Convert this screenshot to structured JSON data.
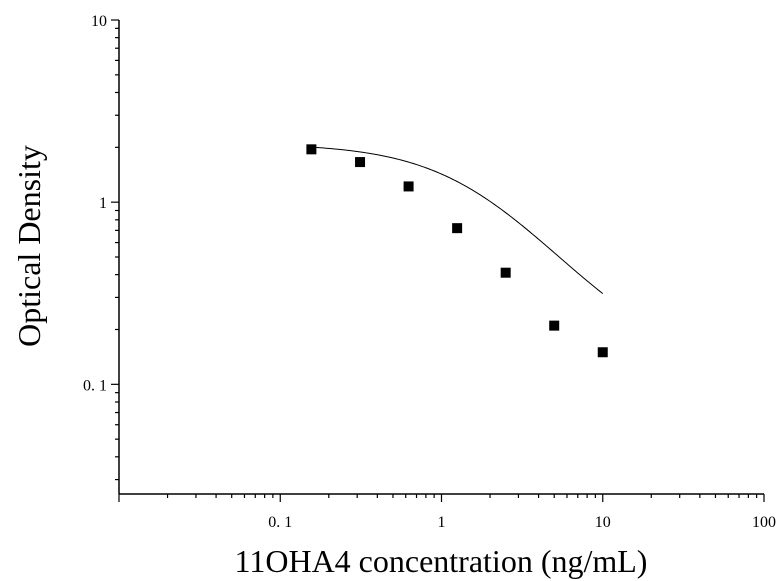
{
  "chart_data": {
    "type": "scatter",
    "title": "",
    "xlabel": "11OHA4 concentration (ng/mL)",
    "ylabel": "Optical Density",
    "xscale": "log",
    "yscale": "log",
    "xlim": [
      0.01,
      100
    ],
    "ylim": [
      0.025,
      10
    ],
    "x_tick_labels": [
      {
        "value": 0.1,
        "label": "0. 1"
      },
      {
        "value": 1,
        "label": "1"
      },
      {
        "value": 10,
        "label": "10"
      },
      {
        "value": 100,
        "label": "100"
      }
    ],
    "y_tick_labels": [
      {
        "value": 0.1,
        "label": "0. 1"
      },
      {
        "value": 1,
        "label": "1"
      },
      {
        "value": 10,
        "label": "10"
      }
    ],
    "grid": false,
    "series": [
      {
        "marker": "square",
        "color": "#000000",
        "points": [
          {
            "x": 0.156,
            "y": 1.95
          },
          {
            "x": 0.3125,
            "y": 1.66
          },
          {
            "x": 0.625,
            "y": 1.22
          },
          {
            "x": 1.25,
            "y": 0.72
          },
          {
            "x": 2.5,
            "y": 0.41
          },
          {
            "x": 5,
            "y": 0.21
          },
          {
            "x": 10,
            "y": 0.15
          }
        ]
      }
    ],
    "fit": {
      "model": "4PL",
      "top": 2.1,
      "bottom": 0.12,
      "ec50": 1.7,
      "hill": 1.25,
      "x_range": [
        0.156,
        10
      ]
    }
  }
}
